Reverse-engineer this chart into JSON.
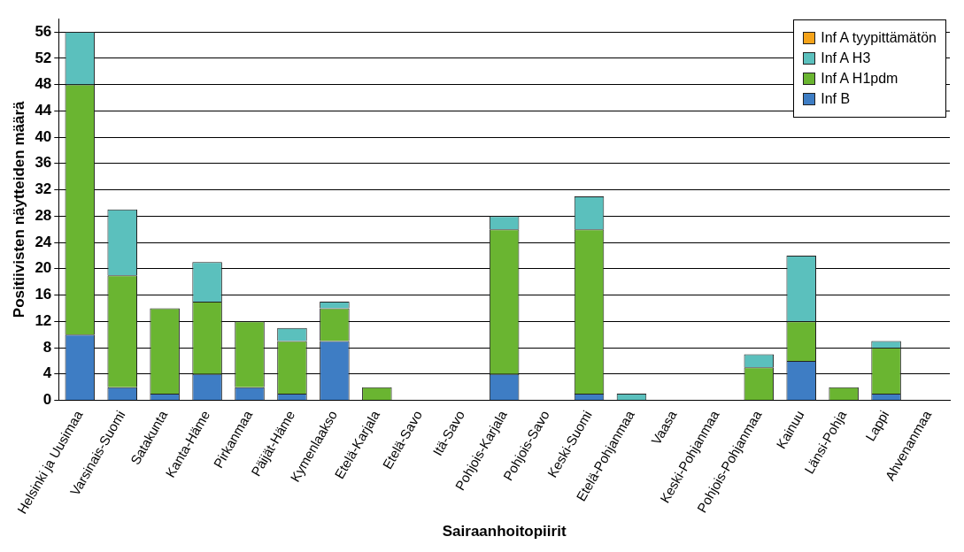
{
  "chart_data": {
    "type": "bar",
    "stacked": true,
    "xlabel": "Sairaanhoitopiirit",
    "ylabel": "Positiivisten näytteiden määrä",
    "categories": [
      "Helsinki ja Uusimaa",
      "Varsinais-Suomi",
      "Satakunta",
      "Kanta-Häme",
      "Pirkanmaa",
      "Päijät-Häme",
      "Kymenlaakso",
      "Etelä-Karjala",
      "Etelä-Savo",
      "Itä-Savo",
      "Pohjois-Karjala",
      "Pohjois-Savo",
      "Keski-Suomi",
      "Etelä-Pohjanmaa",
      "Vaasa",
      "Keski-Pohjanmaa",
      "Pohjois-Pohjanmaa",
      "Kainuu",
      "Länsi-Pohja",
      "Lappi",
      "Ahvenanmaa"
    ],
    "series": [
      {
        "name": "Inf B",
        "color": "#3e7dc4",
        "values": [
          10,
          2,
          1,
          4,
          2,
          1,
          9,
          0,
          0,
          0,
          4,
          0,
          1,
          0,
          0,
          0,
          0,
          6,
          0,
          1,
          0
        ]
      },
      {
        "name": "Inf A H1pdm",
        "color": "#6ab531",
        "values": [
          38,
          17,
          13,
          11,
          10,
          8,
          5,
          2,
          0,
          0,
          22,
          0,
          25,
          0,
          0,
          0,
          5,
          6,
          2,
          7,
          0
        ]
      },
      {
        "name": "Inf A H3",
        "color": "#5bc0bd",
        "values": [
          8,
          10,
          0,
          6,
          0,
          2,
          1,
          0,
          0,
          0,
          2,
          0,
          5,
          1,
          0,
          0,
          2,
          10,
          0,
          1,
          0
        ]
      },
      {
        "name": "Inf A tyypittämätön",
        "color": "#f5a31a",
        "values": [
          0,
          0,
          0,
          0,
          0,
          0,
          0,
          0,
          0,
          0,
          0,
          0,
          0,
          0,
          0,
          0,
          0,
          0,
          0,
          0,
          0
        ]
      }
    ],
    "ylim": [
      0,
      58
    ],
    "yticks": [
      0,
      4,
      8,
      12,
      16,
      20,
      24,
      28,
      32,
      36,
      40,
      44,
      48,
      52,
      56
    ],
    "grid": "y",
    "legend": "top right"
  }
}
